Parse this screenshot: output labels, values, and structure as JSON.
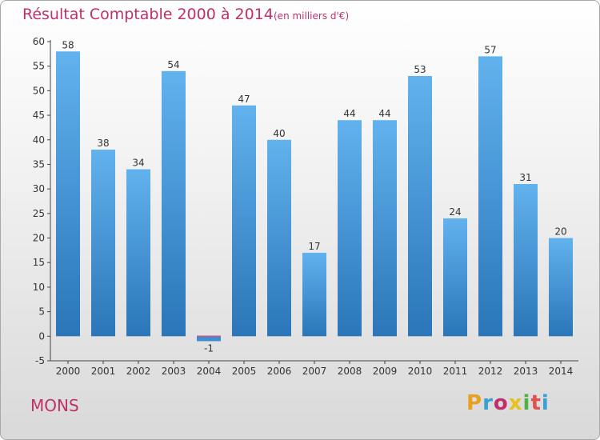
{
  "header": {
    "title": "Résultat Comptable 2000 à 2014",
    "subtitle": "(en milliers d'€)"
  },
  "footer": {
    "place": "MONS",
    "logo": "Proxiti",
    "logo_colors": [
      "#e8a020",
      "#3aa0d0",
      "#c0306a",
      "#e8c020",
      "#50b040",
      "#e05050",
      "#3aa0d0"
    ]
  },
  "colors": {
    "bar_positive": "#3a8fd4",
    "bar_negative": "#e0507a",
    "title": "#c0306a"
  },
  "chart_data": {
    "type": "bar",
    "title": "Résultat Comptable 2000 à 2014",
    "subtitle": "(en milliers d'€)",
    "xlabel": "",
    "ylabel": "",
    "categories": [
      "2000",
      "2001",
      "2002",
      "2003",
      "2004",
      "2005",
      "2006",
      "2007",
      "2008",
      "2009",
      "2010",
      "2011",
      "2012",
      "2013",
      "2014"
    ],
    "values": [
      58,
      38,
      34,
      54,
      -1,
      47,
      40,
      17,
      44,
      44,
      53,
      24,
      57,
      31,
      20
    ],
    "data_labels": [
      "58",
      "38",
      "34",
      "54",
      "-1",
      "47",
      "40",
      "17",
      "44",
      "44",
      "53",
      "24",
      "57",
      "31",
      "20"
    ],
    "ylim": [
      -5,
      60
    ],
    "yticks": [
      -5,
      0,
      5,
      10,
      15,
      20,
      25,
      30,
      35,
      40,
      45,
      50,
      55,
      60
    ],
    "grid": false,
    "legend": "none"
  }
}
